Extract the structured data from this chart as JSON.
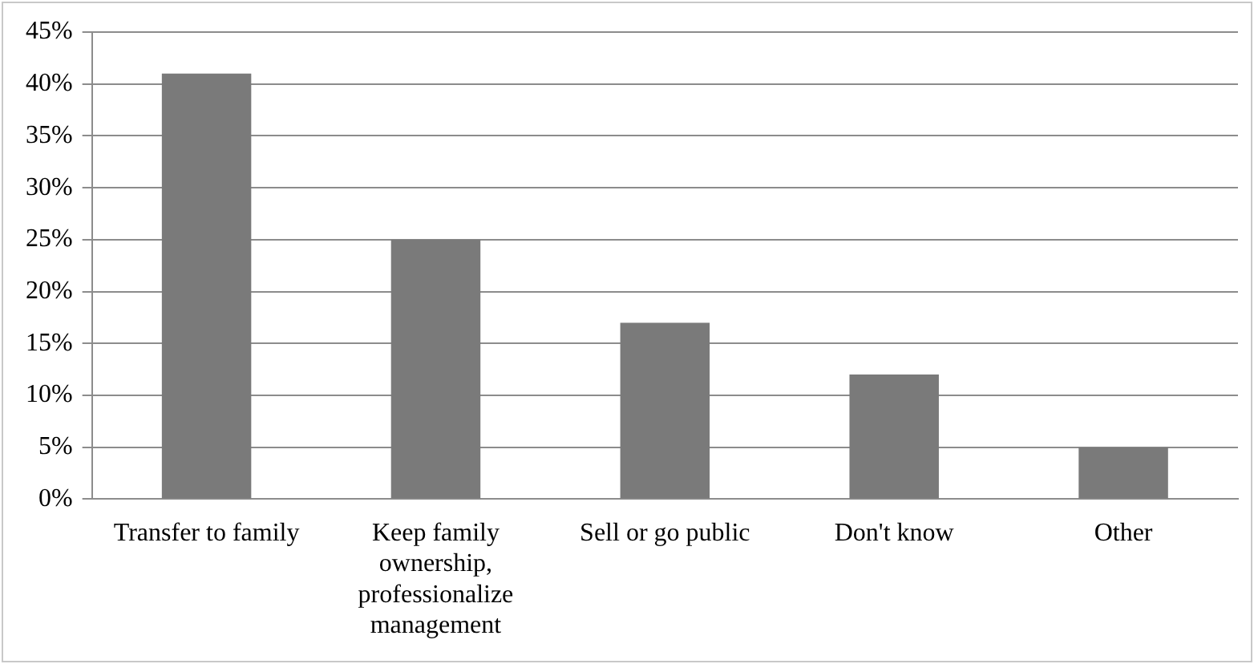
{
  "chart_data": {
    "type": "bar",
    "categories": [
      "Transfer to family",
      "Keep family ownership, professionalize management",
      "Sell or go public",
      "Don't know",
      "Other"
    ],
    "values": [
      41,
      25,
      17,
      12,
      5
    ],
    "color": "#7a7a7a",
    "ylim": [
      0,
      45
    ],
    "yticks": [
      {
        "value": 0,
        "label": "0%"
      },
      {
        "value": 5,
        "label": "5%"
      },
      {
        "value": 10,
        "label": "10%"
      },
      {
        "value": 15,
        "label": "15%"
      },
      {
        "value": 20,
        "label": "20%"
      },
      {
        "value": 25,
        "label": "25%"
      },
      {
        "value": 30,
        "label": "30%"
      },
      {
        "value": 35,
        "label": "35%"
      },
      {
        "value": 40,
        "label": "40%"
      },
      {
        "value": 45,
        "label": "45%"
      }
    ],
    "grid": "y"
  }
}
